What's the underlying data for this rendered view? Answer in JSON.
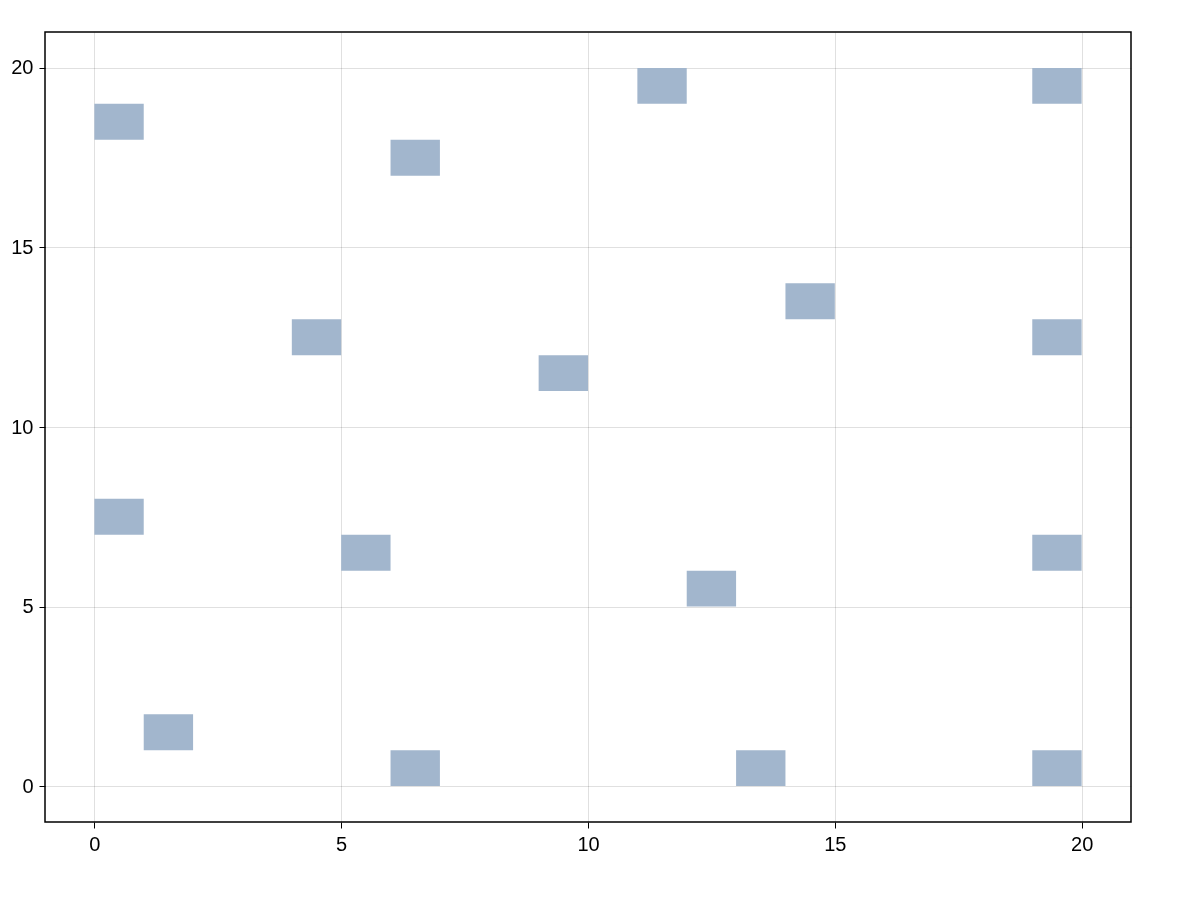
{
  "chart_data": {
    "type": "bar",
    "series": [
      {
        "color": "#a2b6cd",
        "x": [
          0.5,
          1.5,
          4.5,
          5.5,
          6.5,
          9.5,
          11.5,
          12.5,
          13.5,
          14.5,
          19.5
        ],
        "base": [
          18,
          1,
          12,
          6,
          17,
          11,
          19,
          5,
          0,
          13,
          19
        ],
        "values": [
          1,
          1,
          1,
          1,
          1,
          1,
          1,
          1,
          1,
          1,
          1
        ]
      },
      {
        "color": "#a2b6cd",
        "x": [
          0.5,
          6.5,
          19.5
        ],
        "base": [
          7,
          0,
          12
        ],
        "values": [
          1,
          1,
          1
        ]
      },
      {
        "color": "#a2b6cd",
        "x": [
          19.5
        ],
        "base": [
          6
        ],
        "values": [
          1
        ]
      },
      {
        "color": "#a2b6cd",
        "x": [
          19.5
        ],
        "base": [
          0
        ],
        "values": [
          1
        ]
      }
    ],
    "xlim": [
      -1,
      21
    ],
    "ylim": [
      -1,
      21
    ],
    "xticks": [
      0,
      5,
      10,
      15,
      20
    ],
    "yticks": [
      0,
      5,
      10,
      15,
      20
    ],
    "grid": true
  }
}
